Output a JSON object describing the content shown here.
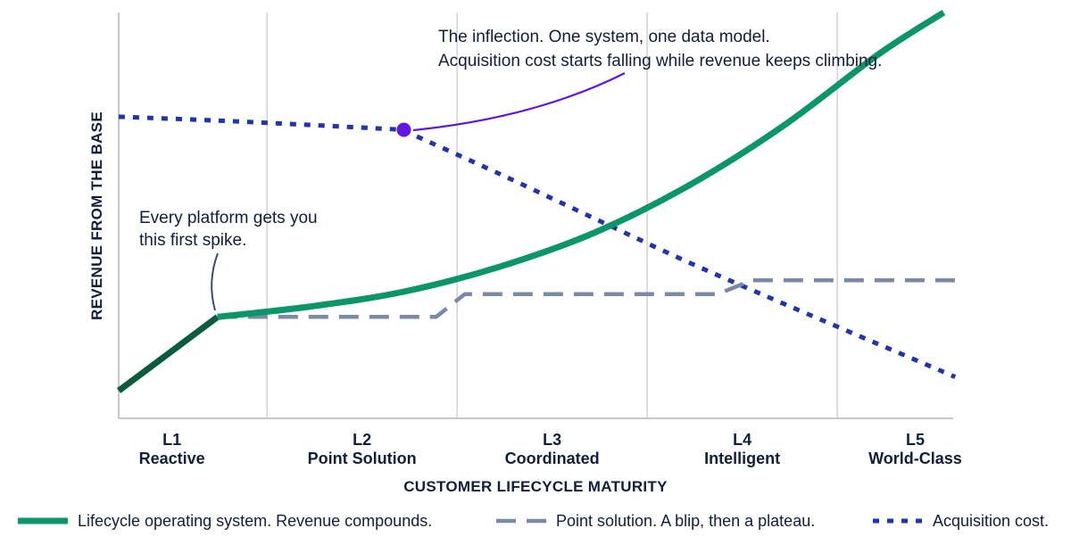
{
  "chart_data": {
    "type": "line",
    "xlabel": "CUSTOMER LIFECYCLE MATURITY",
    "ylabel": "REVENUE FROM THE BASE",
    "x_range": [
      0,
      4.4
    ],
    "y_range": [
      0,
      100
    ],
    "grid": "vertical",
    "legend_position": "bottom",
    "categories": [
      {
        "level": "L1",
        "name": "Reactive"
      },
      {
        "level": "L2",
        "name": "Point Solution"
      },
      {
        "level": "L3",
        "name": "Coordinated"
      },
      {
        "level": "L4",
        "name": "Intelligent"
      },
      {
        "level": "L5",
        "name": "World-Class"
      }
    ],
    "series": [
      {
        "name": "Lifecycle operating system. Revenue compounds.",
        "style": "solid",
        "color": "#0a9669",
        "early_color": "#0b5c3c",
        "points": [
          [
            0.0,
            6.8
          ],
          [
            0.52,
            25
          ],
          [
            1.0,
            27.5
          ],
          [
            1.5,
            31.2
          ],
          [
            2.0,
            37.3
          ],
          [
            2.5,
            45.7
          ],
          [
            3.0,
            57.4
          ],
          [
            3.5,
            72.2
          ],
          [
            4.0,
            89.8
          ],
          [
            4.34,
            100
          ]
        ]
      },
      {
        "name": "Point solution. A blip, then a plateau.",
        "style": "dashed",
        "color": "#7b88a8",
        "points": [
          [
            0.52,
            25
          ],
          [
            1.67,
            25
          ],
          [
            1.82,
            30.6
          ],
          [
            3.15,
            30.6
          ],
          [
            3.33,
            34
          ],
          [
            4.4,
            34
          ]
        ]
      },
      {
        "name": "Acquisition cost.",
        "style": "dotted",
        "color": "#1f35a8",
        "points": [
          [
            0.0,
            74.3
          ],
          [
            0.5,
            73.4
          ],
          [
            1.0,
            72.3
          ],
          [
            1.5,
            71.1
          ],
          [
            1.5,
            70.9
          ],
          [
            2.0,
            60.3
          ],
          [
            2.5,
            49.3
          ],
          [
            3.0,
            38.4
          ],
          [
            3.5,
            28.2
          ],
          [
            4.0,
            18.2
          ],
          [
            4.4,
            10.2
          ]
        ]
      }
    ],
    "inflection_point": {
      "x": 1.5,
      "y": 71.1,
      "color": "#6314e0"
    },
    "annotations": [
      {
        "lines": [
          "The inflection. One system, one data model.",
          "Acquisition cost starts falling while revenue keeps climbing."
        ],
        "target": "inflection_point"
      },
      {
        "lines": [
          "Every platform gets you",
          "this first spike."
        ],
        "target": "first_spike"
      }
    ]
  }
}
